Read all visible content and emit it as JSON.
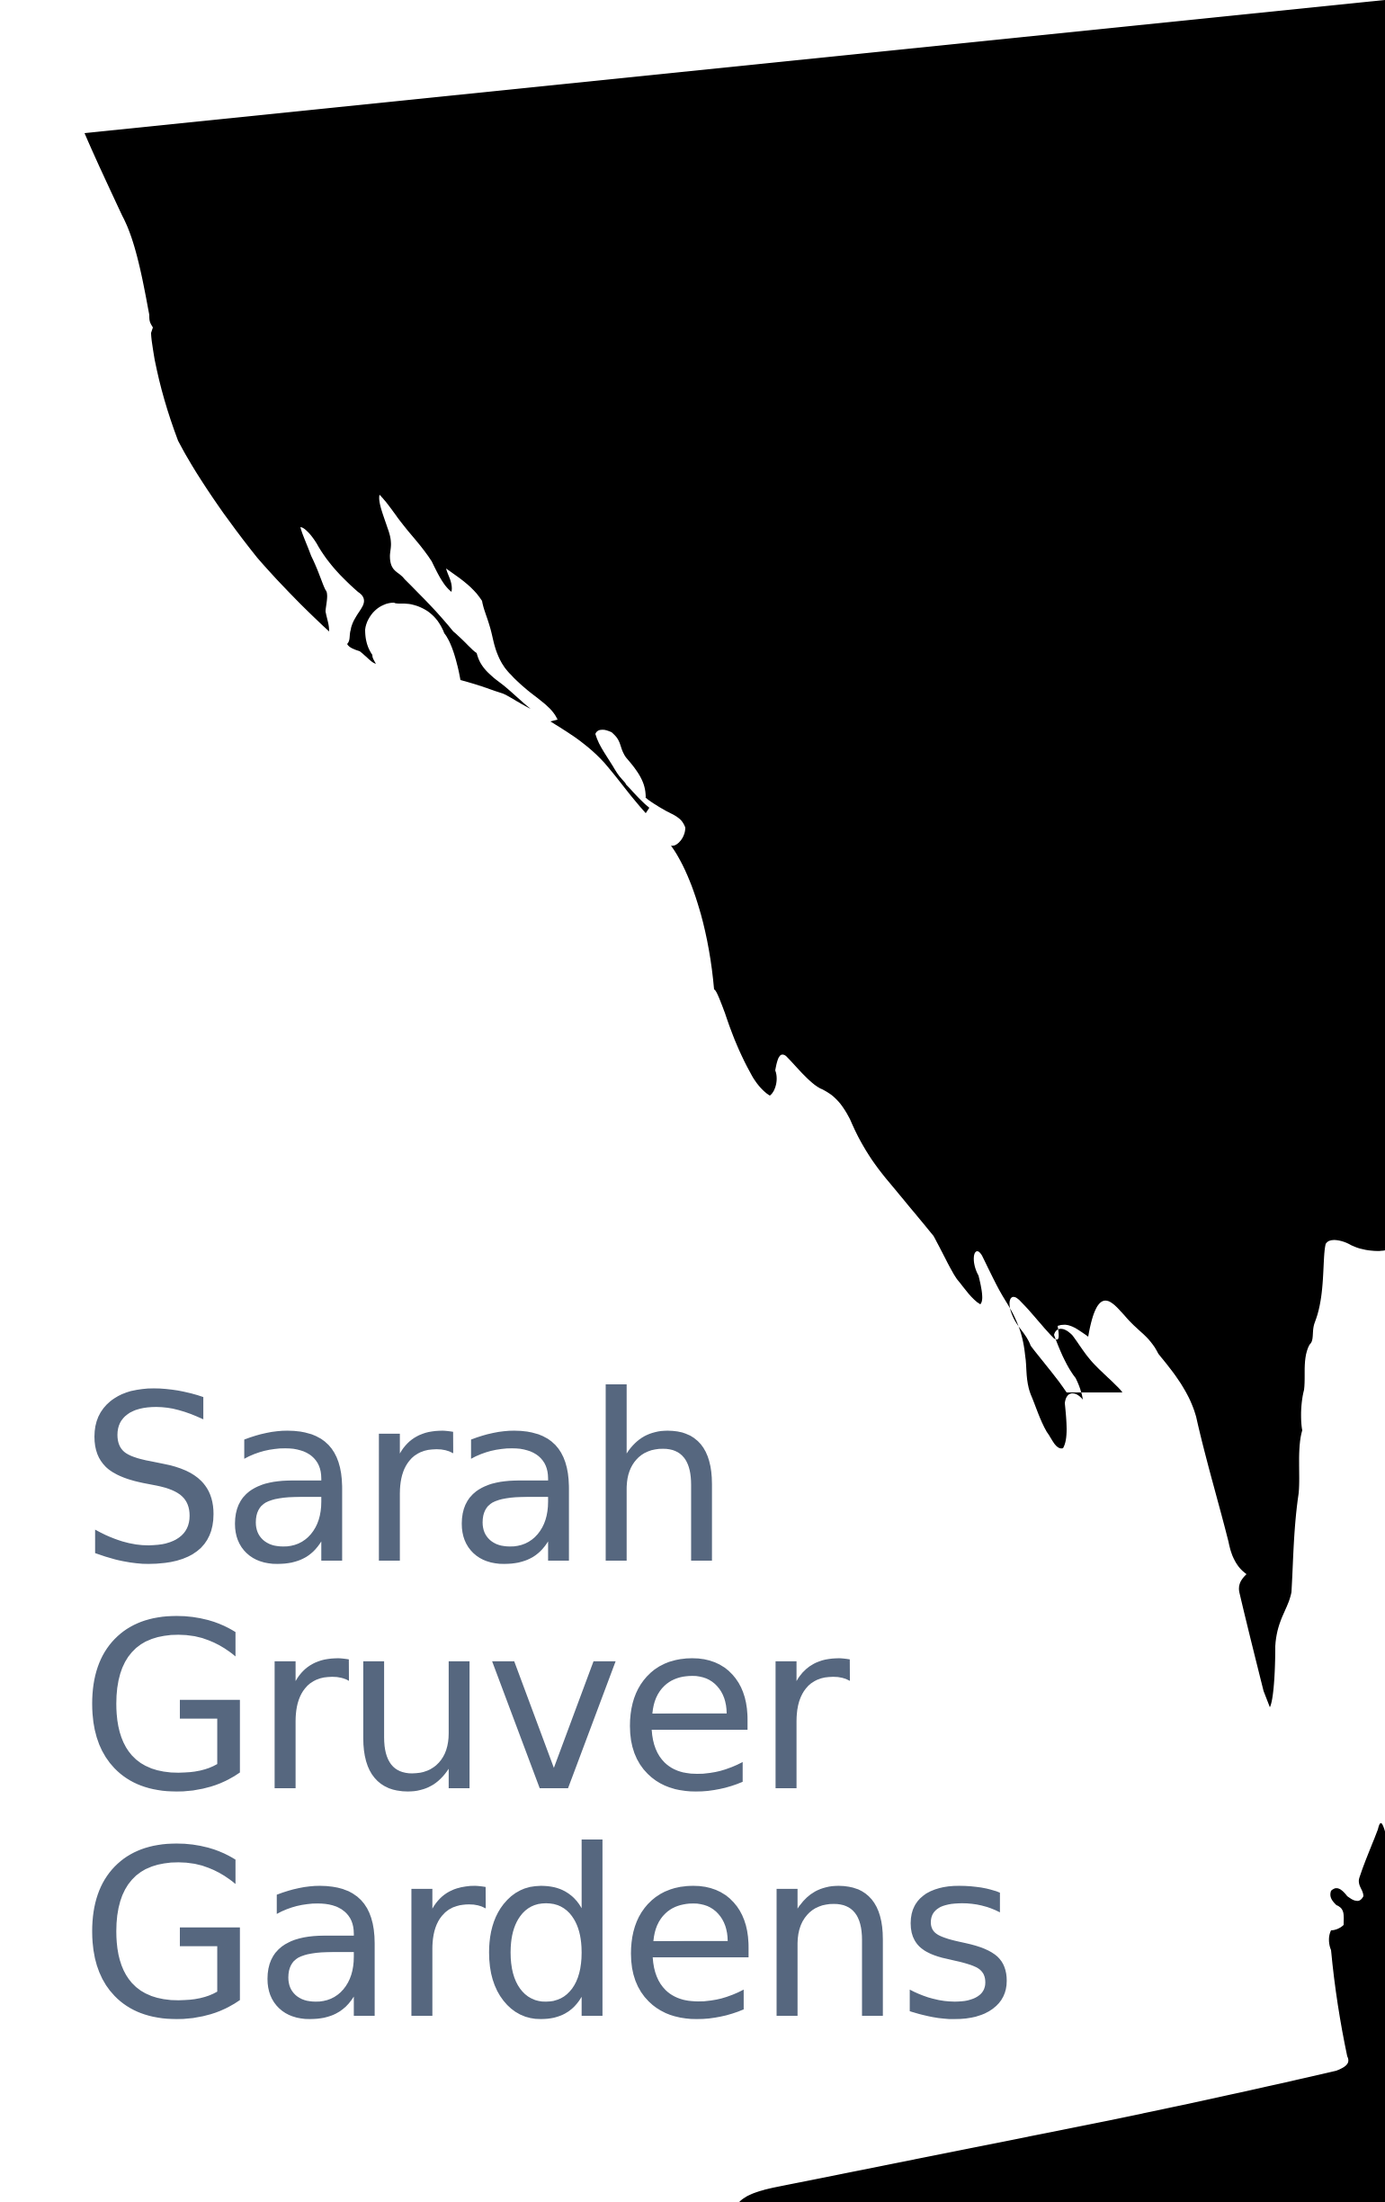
{
  "brand": {
    "line1": "Sarah",
    "line2": "Gruver",
    "line3": "Gardens",
    "text_color": "#56677f"
  },
  "artwork": {
    "description_icon": "ink-silhouette-graphic",
    "fill_color": "#000000"
  }
}
